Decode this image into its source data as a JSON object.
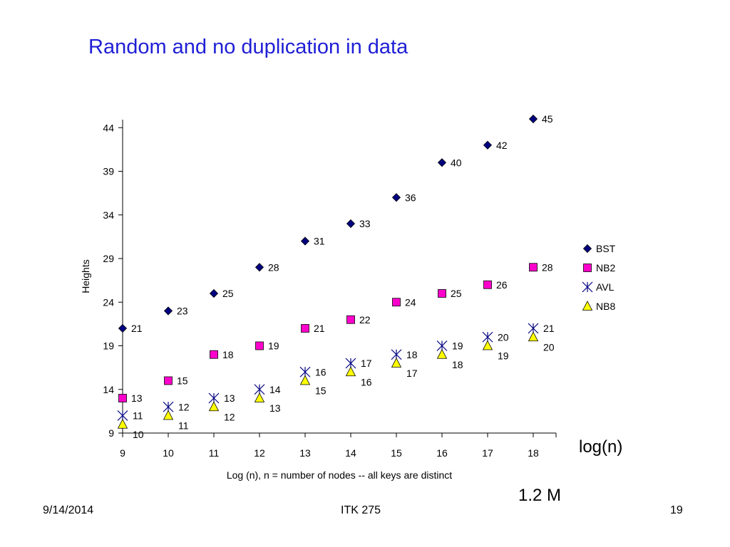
{
  "slide": {
    "title": "Random and no duplication in  data",
    "side_label": "log(n)",
    "note": "1.2 M"
  },
  "footer": {
    "date": "9/14/2014",
    "course": "ITK 275",
    "page": "19"
  },
  "chart_data": {
    "type": "scatter",
    "xlabel": "Log (n), n = number of nodes -- all keys are distinct",
    "ylabel": "Heights",
    "x": [
      9,
      10,
      11,
      12,
      13,
      14,
      15,
      16,
      17,
      18
    ],
    "xlim": [
      9,
      18
    ],
    "ylim": [
      9,
      45
    ],
    "yticks": [
      9,
      14,
      19,
      24,
      29,
      34,
      39,
      44
    ],
    "grid": false,
    "legend_position": "right",
    "series": [
      {
        "name": "BST",
        "marker": "diamond",
        "color": "#000080",
        "values": [
          21,
          23,
          25,
          28,
          31,
          33,
          36,
          40,
          42,
          45
        ]
      },
      {
        "name": "NB2",
        "marker": "square",
        "color": "#ff00cc",
        "values": [
          13,
          15,
          18,
          19,
          21,
          22,
          24,
          25,
          26,
          28
        ]
      },
      {
        "name": "AVL",
        "marker": "star",
        "color": "#000080",
        "values": [
          11,
          12,
          13,
          14,
          16,
          17,
          18,
          19,
          20,
          21
        ]
      },
      {
        "name": "NB8",
        "marker": "triangle",
        "color": "#ffff00",
        "values": [
          10,
          11,
          12,
          13,
          15,
          16,
          17,
          18,
          19,
          20
        ]
      }
    ]
  }
}
